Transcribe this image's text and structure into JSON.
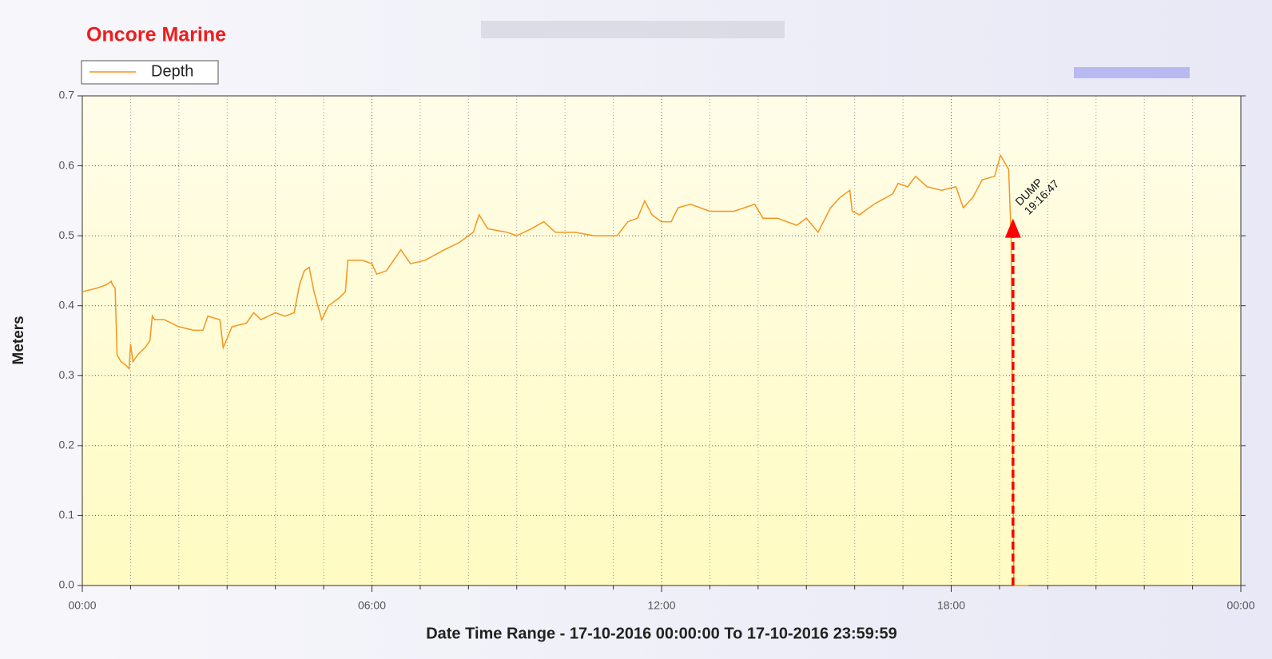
{
  "chart_data": {
    "type": "line",
    "title": "Oncore Marine",
    "x_label": "Date Time Range - 17-10-2016 00:00:00 To 17-10-2016 23:59:59",
    "y_label": "Meters",
    "x": [
      0,
      0.3,
      0.5,
      0.6,
      0.62,
      0.68,
      0.72,
      0.8,
      0.9,
      0.97,
      1.0,
      1.05,
      1.15,
      1.3,
      1.4,
      1.45,
      1.5,
      1.7,
      2.0,
      2.3,
      2.5,
      2.6,
      2.85,
      2.92,
      3.1,
      3.4,
      3.55,
      3.7,
      4.0,
      4.2,
      4.39,
      4.5,
      4.6,
      4.7,
      4.8,
      4.9,
      4.96,
      5.1,
      5.3,
      5.45,
      5.5,
      5.8,
      6.0,
      6.1,
      6.3,
      6.5,
      6.6,
      6.8,
      7.1,
      7.5,
      7.8,
      8.0,
      8.1,
      8.22,
      8.4,
      8.8,
      9.0,
      9.3,
      9.56,
      9.8,
      10.2,
      10.6,
      11.0,
      11.08,
      11.3,
      11.5,
      11.65,
      11.8,
      12.0,
      12.2,
      12.34,
      12.6,
      13.0,
      13.5,
      13.93,
      14.1,
      14.4,
      14.8,
      15.0,
      15.24,
      15.5,
      15.7,
      15.9,
      15.95,
      16.1,
      16.4,
      16.79,
      16.9,
      17.1,
      17.26,
      17.5,
      17.8,
      18.1,
      18.25,
      18.45,
      18.64,
      18.9,
      19.02,
      19.19,
      19.24,
      19.3,
      19.4,
      19.6
    ],
    "series": [
      {
        "name": "Depth",
        "color": "#f7941d",
        "values": [
          0.42,
          0.425,
          0.43,
          0.435,
          0.43,
          0.425,
          0.33,
          0.32,
          0.315,
          0.31,
          0.345,
          0.32,
          0.33,
          0.34,
          0.35,
          0.385,
          0.38,
          0.38,
          0.37,
          0.365,
          0.365,
          0.385,
          0.38,
          0.34,
          0.37,
          0.375,
          0.39,
          0.38,
          0.39,
          0.385,
          0.39,
          0.43,
          0.45,
          0.455,
          0.42,
          0.395,
          0.38,
          0.4,
          0.41,
          0.42,
          0.465,
          0.465,
          0.46,
          0.445,
          0.45,
          0.47,
          0.48,
          0.46,
          0.465,
          0.48,
          0.49,
          0.5,
          0.505,
          0.53,
          0.51,
          0.505,
          0.5,
          0.51,
          0.52,
          0.505,
          0.505,
          0.5,
          0.5,
          0.5,
          0.52,
          0.525,
          0.55,
          0.53,
          0.52,
          0.52,
          0.54,
          0.545,
          0.535,
          0.535,
          0.545,
          0.525,
          0.525,
          0.515,
          0.525,
          0.505,
          0.54,
          0.555,
          0.565,
          0.535,
          0.53,
          0.545,
          0.56,
          0.575,
          0.57,
          0.585,
          0.57,
          0.565,
          0.57,
          0.54,
          0.555,
          0.58,
          0.585,
          0.615,
          0.595,
          0.5,
          0.0,
          0.0,
          0.0
        ]
      }
    ],
    "xlim": [
      0,
      24
    ],
    "xticks": [
      {
        "value": 0,
        "label": "00:00"
      },
      {
        "value": 6,
        "label": "06:00"
      },
      {
        "value": 12,
        "label": "12:00"
      },
      {
        "value": 18,
        "label": "18:00"
      },
      {
        "value": 24,
        "label": "00:00"
      }
    ],
    "x_minor_ticks": [
      1,
      2,
      3,
      4,
      5,
      7,
      8,
      9,
      10,
      11,
      13,
      14,
      15,
      16,
      17,
      19,
      20,
      21,
      22,
      23
    ],
    "ylim": [
      0,
      0.7
    ],
    "yticks": [
      {
        "value": 0,
        "label": "0.0"
      },
      {
        "value": 0.1,
        "label": "0.1"
      },
      {
        "value": 0.2,
        "label": "0.2"
      },
      {
        "value": 0.3,
        "label": "0.3"
      },
      {
        "value": 0.4,
        "label": "0.4"
      },
      {
        "value": 0.5,
        "label": "0.5"
      },
      {
        "value": 0.6,
        "label": "0.6"
      },
      {
        "value": 0.7,
        "label": "0.7"
      }
    ],
    "grid": true,
    "legend": "top-left",
    "annotation": {
      "lines": [
        "DUMP",
        "19:16:47"
      ],
      "x": 19.28,
      "y": 0.52,
      "color": "#ff0000"
    }
  }
}
